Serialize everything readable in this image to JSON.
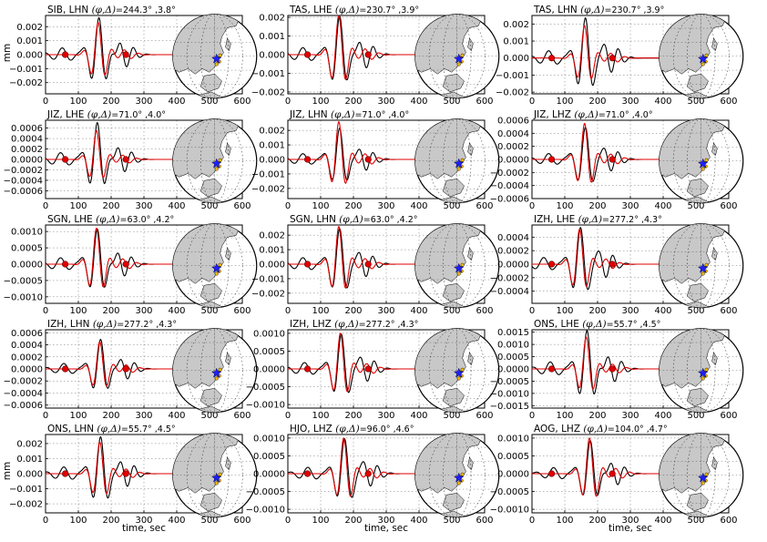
{
  "figure": {
    "ylabel": "mm",
    "xlabel": "time, sec",
    "colors": {
      "observed": "#000000",
      "synthetic": "#e00000",
      "marker": "#e00000",
      "land": "#c8c8c8",
      "ocean": "#ffffff",
      "star": "#1f1fff",
      "stations": "#ffbb00"
    }
  },
  "chart_data": [
    {
      "type": "line",
      "station": "SIB",
      "channel": "LHN",
      "title_prefix": "SIB, LHN",
      "title_var": "(φ,Δ)",
      "title_values": "=244.3° ,3.8°",
      "xlim": [
        0,
        600
      ],
      "ylim": [
        -0.0028,
        0.0028
      ],
      "yticks": [
        "0.002",
        "0.001",
        "0.000",
        "−0.001",
        "−0.002"
      ],
      "ytick_values": [
        0.002,
        0.001,
        0,
        -0.001,
        -0.002
      ],
      "xticks": [
        0,
        100,
        200,
        300,
        400,
        500,
        600
      ],
      "show_xticks": true,
      "peak_time": 165,
      "obs_amp": 0.0027,
      "syn_amp": 0.0023,
      "markers": [
        60,
        245
      ],
      "map_ocean_shade": false
    },
    {
      "type": "line",
      "station": "TAS",
      "channel": "LHE",
      "title_prefix": "TAS, LHE",
      "title_var": "(φ,Δ)",
      "title_values": "=230.7° ,3.9°",
      "xlim": [
        0,
        600
      ],
      "ylim": [
        -0.0021,
        0.0021
      ],
      "yticks": [
        "0.002",
        "0.001",
        "0.000",
        "−0.001",
        "−0.002"
      ],
      "ytick_values": [
        0.002,
        0.001,
        0,
        -0.001,
        -0.002
      ],
      "xticks": [
        0,
        100,
        200,
        300,
        400,
        500,
        600
      ],
      "show_xticks": true,
      "peak_time": 160,
      "obs_amp": 0.0021,
      "syn_amp": 0.0021,
      "markers": [
        60,
        245
      ],
      "map_ocean_shade": false
    },
    {
      "type": "line",
      "station": "TAS",
      "channel": "LHN",
      "title_prefix": "TAS, LHN",
      "title_var": "(φ,Δ)",
      "title_values": "=230.7° ,3.9°",
      "xlim": [
        0,
        600
      ],
      "ylim": [
        -0.0021,
        0.0025
      ],
      "yticks": [
        "0.002",
        "0.001",
        "0.000",
        "−0.001",
        "−0.002"
      ],
      "ytick_values": [
        0.002,
        0.001,
        0,
        -0.001,
        -0.002
      ],
      "xticks": [
        0,
        100,
        200,
        300,
        400,
        500,
        600
      ],
      "show_xticks": true,
      "peak_time": 165,
      "obs_amp": 0.0024,
      "syn_amp": 0.0019,
      "markers": [
        60,
        245
      ],
      "map_ocean_shade": false
    },
    {
      "type": "line",
      "station": "JIZ",
      "channel": "LHE",
      "title_prefix": "JIZ, LHE",
      "title_var": "(φ,Δ)",
      "title_values": "=71.0° ,4.0°",
      "xlim": [
        0,
        600
      ],
      "ylim": [
        -0.00075,
        0.00075
      ],
      "yticks": [
        "0.0006",
        "0.0004",
        "0.0002",
        "0.0000",
        "−0.0002",
        "−0.0004",
        "−0.0006"
      ],
      "ytick_values": [
        0.0006,
        0.0004,
        0.0002,
        0,
        -0.0002,
        -0.0004,
        -0.0006
      ],
      "xticks": [
        0,
        100,
        200,
        300,
        400,
        500,
        600
      ],
      "show_xticks": true,
      "peak_time": 160,
      "obs_amp": 0.00072,
      "syn_amp": 0.00055,
      "markers": [
        60,
        245
      ],
      "map_ocean_shade": false
    },
    {
      "type": "line",
      "station": "JIZ",
      "channel": "LHN",
      "title_prefix": "JIZ, LHN",
      "title_var": "(φ,Δ)",
      "title_values": "=71.0° ,4.0°",
      "xlim": [
        0,
        600
      ],
      "ylim": [
        -0.0027,
        0.0027
      ],
      "yticks": [
        "0.002",
        "0.001",
        "0.000",
        "−0.001",
        "−0.002"
      ],
      "ytick_values": [
        0.002,
        0.001,
        0,
        -0.001,
        -0.002
      ],
      "xticks": [
        0,
        100,
        200,
        300,
        400,
        500,
        600
      ],
      "show_xticks": true,
      "peak_time": 160,
      "obs_amp": 0.0022,
      "syn_amp": 0.0026,
      "markers": [
        60,
        245
      ],
      "map_ocean_shade": false
    },
    {
      "type": "line",
      "station": "JIZ",
      "channel": "LHZ",
      "title_prefix": "JIZ, LHZ",
      "title_var": "(φ,Δ)",
      "title_values": "=71.0° ,4.0°",
      "xlim": [
        0,
        600
      ],
      "ylim": [
        -0.0006,
        0.0006
      ],
      "yticks": [
        "0.0006",
        "0.0004",
        "0.0002",
        "0.0000",
        "−0.0002",
        "−0.0004",
        "−0.0006"
      ],
      "ytick_values": [
        0.0006,
        0.0004,
        0.0002,
        0,
        -0.0002,
        -0.0004,
        -0.0006
      ],
      "xticks": [
        0,
        100,
        200,
        300,
        400,
        500,
        600
      ],
      "show_xticks": true,
      "peak_time": 165,
      "obs_amp": 0.0005,
      "syn_amp": 0.00055,
      "markers": [
        60,
        245
      ],
      "map_ocean_shade": true
    },
    {
      "type": "line",
      "station": "SGN",
      "channel": "LHE",
      "title_prefix": "SGN, LHE",
      "title_var": "(φ,Δ)",
      "title_values": "=63.0° ,4.2°",
      "xlim": [
        0,
        600
      ],
      "ylim": [
        -0.0012,
        0.0012
      ],
      "yticks": [
        "0.0010",
        "0.0005",
        "0.0000",
        "−0.0005",
        "−0.0010"
      ],
      "ytick_values": [
        0.001,
        0.0005,
        0,
        -0.0005,
        -0.001
      ],
      "xticks": [
        0,
        100,
        200,
        300,
        400,
        500,
        600
      ],
      "show_xticks": true,
      "peak_time": 160,
      "obs_amp": 0.0011,
      "syn_amp": 0.0011,
      "markers": [
        60,
        245
      ],
      "map_ocean_shade": false
    },
    {
      "type": "line",
      "station": "SGN",
      "channel": "LHN",
      "title_prefix": "SGN, LHN",
      "title_var": "(φ,Δ)",
      "title_values": "=63.0° ,4.2°",
      "xlim": [
        0,
        600
      ],
      "ylim": [
        -0.0027,
        0.0027
      ],
      "yticks": [
        "0.002",
        "0.001",
        "0.000",
        "−0.001",
        "−0.002"
      ],
      "ytick_values": [
        0.002,
        0.001,
        0,
        -0.001,
        -0.002
      ],
      "xticks": [
        0,
        100,
        200,
        300,
        400,
        500,
        600
      ],
      "show_xticks": true,
      "peak_time": 160,
      "obs_amp": 0.0025,
      "syn_amp": 0.0026,
      "markers": [
        60,
        245
      ],
      "map_ocean_shade": false
    },
    {
      "type": "line",
      "station": "IZH",
      "channel": "LHE",
      "title_prefix": "IZH, LHE",
      "title_var": "(φ,Δ)",
      "title_values": "=277.2° ,4.3°",
      "xlim": [
        0,
        600
      ],
      "ylim": [
        -0.00058,
        0.00058
      ],
      "yticks": [
        "0.0004",
        "0.0002",
        "0.0000",
        "−0.0002",
        "−0.0004"
      ],
      "ytick_values": [
        0.0004,
        0.0002,
        0,
        -0.0002,
        -0.0004
      ],
      "xticks": [
        0,
        100,
        200,
        300,
        400,
        500,
        600
      ],
      "show_xticks": true,
      "peak_time": 150,
      "obs_amp": 0.00055,
      "syn_amp": 0.00052,
      "markers": [
        60,
        245
      ],
      "map_ocean_shade": false
    },
    {
      "type": "line",
      "station": "IZH",
      "channel": "LHN",
      "title_prefix": "IZH, LHN",
      "title_var": "(φ,Δ)",
      "title_values": "=277.2° ,4.3°",
      "xlim": [
        0,
        600
      ],
      "ylim": [
        -0.00065,
        0.00065
      ],
      "yticks": [
        "0.0006",
        "0.0004",
        "0.0002",
        "0.0000",
        "−0.0002",
        "−0.0004",
        "−0.0006"
      ],
      "ytick_values": [
        0.0006,
        0.0004,
        0.0002,
        0,
        -0.0002,
        -0.0004,
        -0.0006
      ],
      "xticks": [
        0,
        100,
        200,
        300,
        400,
        500,
        600
      ],
      "show_xticks": true,
      "peak_time": 170,
      "obs_amp": 0.0005,
      "syn_amp": 0.00045,
      "markers": [
        60,
        245
      ],
      "map_ocean_shade": false
    },
    {
      "type": "line",
      "station": "IZH",
      "channel": "LHZ",
      "title_prefix": "IZH, LHZ",
      "title_var": "(φ,Δ)",
      "title_values": "=277.2° ,4.3°",
      "xlim": [
        0,
        600
      ],
      "ylim": [
        -0.0011,
        0.0011
      ],
      "yticks": [
        "0.0010",
        "0.0005",
        "0.0000",
        "−0.0005",
        "−0.0010"
      ],
      "ytick_values": [
        0.001,
        0.0005,
        0,
        -0.0005,
        -0.001
      ],
      "xticks": [
        0,
        100,
        200,
        300,
        400,
        500,
        600
      ],
      "show_xticks": true,
      "peak_time": 165,
      "obs_amp": 0.001,
      "syn_amp": 0.001,
      "markers": [
        60,
        245
      ],
      "map_ocean_shade": false
    },
    {
      "type": "line",
      "station": "ONS",
      "channel": "LHE",
      "title_prefix": "ONS, LHE",
      "title_var": "(φ,Δ)",
      "title_values": "=55.7° ,4.5°",
      "xlim": [
        0,
        600
      ],
      "ylim": [
        -0.0016,
        0.0016
      ],
      "yticks": [
        "0.0015",
        "0.0010",
        "0.0005",
        "0.0000",
        "−0.0005",
        "−0.0010",
        "−0.0015"
      ],
      "ytick_values": [
        0.0015,
        0.001,
        0.0005,
        0,
        -0.0005,
        -0.001,
        -0.0015
      ],
      "xticks": [
        0,
        100,
        200,
        300,
        400,
        500,
        600
      ],
      "show_xticks": true,
      "peak_time": 170,
      "obs_amp": 0.0016,
      "syn_amp": 0.0013,
      "markers": [
        60,
        245
      ],
      "map_ocean_shade": false
    },
    {
      "type": "line",
      "station": "ONS",
      "channel": "LHN",
      "title_prefix": "ONS, LHN",
      "title_var": "(φ,Δ)",
      "title_values": "=55.7° ,4.5°",
      "xlim": [
        0,
        600
      ],
      "ylim": [
        -0.0026,
        0.0026
      ],
      "yticks": [
        "0.002",
        "0.001",
        "0.000",
        "−0.001",
        "−0.002"
      ],
      "ytick_values": [
        0.002,
        0.001,
        0,
        -0.001,
        -0.002
      ],
      "xticks": [
        0,
        100,
        200,
        300,
        400,
        500,
        600
      ],
      "show_xticks": true,
      "peak_time": 170,
      "obs_amp": 0.0025,
      "syn_amp": 0.0021,
      "markers": [
        60,
        245
      ],
      "map_ocean_shade": false
    },
    {
      "type": "line",
      "station": "HJO",
      "channel": "LHZ",
      "title_prefix": "HJO, LHZ",
      "title_var": "(φ,Δ)",
      "title_values": "=96.0° ,4.6°",
      "xlim": [
        0,
        600
      ],
      "ylim": [
        -0.0011,
        0.0011
      ],
      "yticks": [
        "0.0010",
        "0.0005",
        "0.0000",
        "−0.0005",
        "−0.0010"
      ],
      "ytick_values": [
        0.001,
        0.0005,
        0,
        -0.0005,
        -0.001
      ],
      "xticks": [
        0,
        100,
        200,
        300,
        400,
        500,
        600
      ],
      "show_xticks": true,
      "peak_time": 175,
      "obs_amp": 0.001,
      "syn_amp": 0.001,
      "markers": [
        60,
        245
      ],
      "map_ocean_shade": false
    },
    {
      "type": "line",
      "station": "AOG",
      "channel": "LHZ",
      "title_prefix": "AOG, LHZ",
      "title_var": "(φ,Δ)",
      "title_values": "=104.0° ,4.7°",
      "xlim": [
        0,
        600
      ],
      "ylim": [
        -0.0011,
        0.0011
      ],
      "yticks": [
        "0.0010",
        "0.0005",
        "0.0000",
        "−0.0005",
        "−0.0010"
      ],
      "ytick_values": [
        0.001,
        0.0005,
        0,
        -0.0005,
        -0.001
      ],
      "xticks": [
        0,
        100,
        200,
        300,
        400,
        500,
        600
      ],
      "show_xticks": true,
      "peak_time": 180,
      "obs_amp": 0.00095,
      "syn_amp": 0.001,
      "markers": [
        60,
        245
      ],
      "map_ocean_shade": false
    }
  ]
}
